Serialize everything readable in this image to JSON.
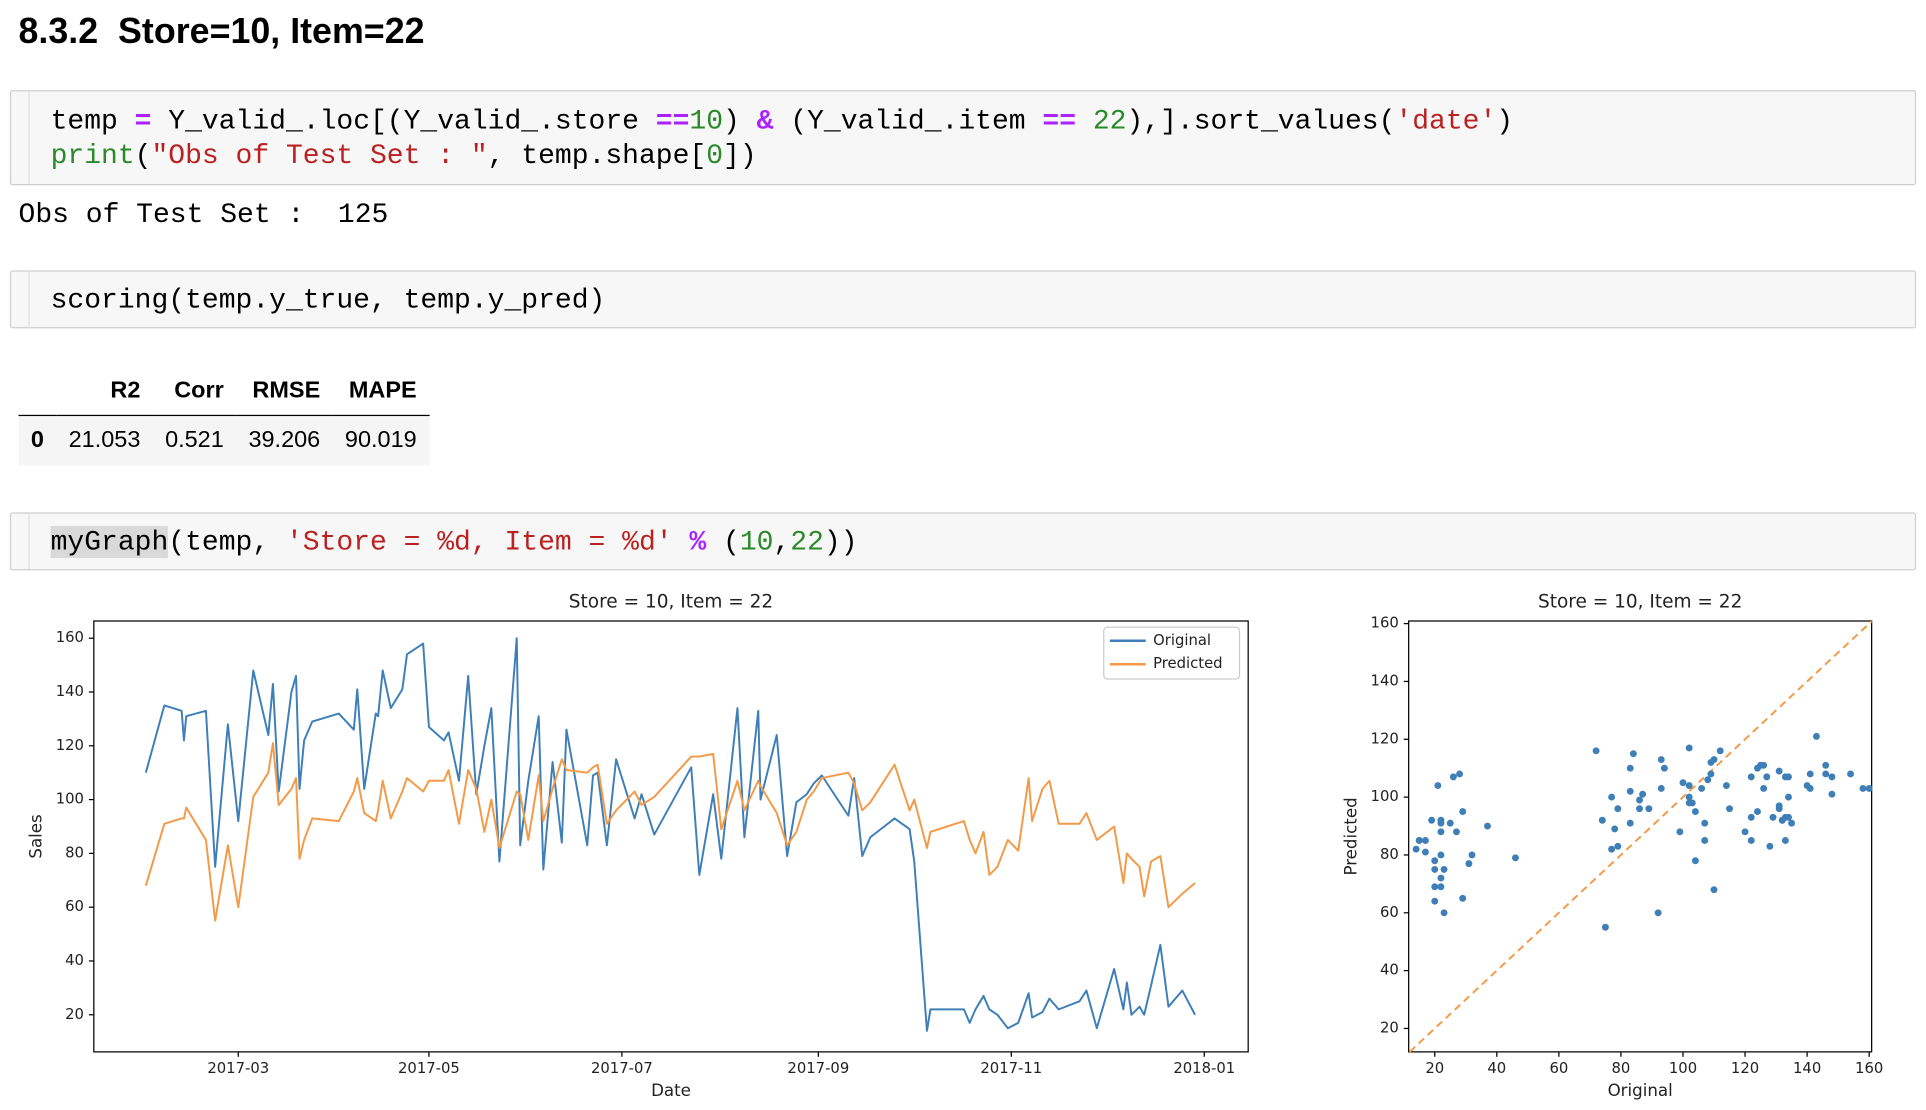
{
  "heading": "8.3.2  Store=10, Item=22",
  "cells": [
    {
      "code": [
        [
          "temp ",
          "=",
          " Y_valid_.loc[(Y_valid_.store ",
          "==",
          "10",
          ") ",
          "&",
          " (Y_valid_.item ",
          "==",
          " ",
          "22",
          "),].sort_values(",
          "'date'",
          ")"
        ],
        [
          "print",
          "(",
          "\"Obs of Test Set : \"",
          ", temp.shape[",
          "0",
          "])"
        ]
      ],
      "output": "Obs of Test Set :  125"
    },
    {
      "code": [
        [
          "scoring(temp.y_true, temp.y_pred)"
        ]
      ]
    },
    {
      "code": [
        [
          "myGraph",
          "(temp, ",
          "'Store = %d, Item = %d'",
          " ",
          "%",
          " (",
          "10",
          ",",
          "22",
          "))"
        ]
      ]
    }
  ],
  "table": {
    "columns": [
      "R2",
      "Corr",
      "RMSE",
      "MAPE"
    ],
    "rows": [
      {
        "index": "0",
        "values": [
          "21.053",
          "0.521",
          "39.206",
          "90.019"
        ]
      }
    ]
  },
  "chart_data": [
    {
      "type": "line",
      "title": "Store = 10, Item = 22",
      "xlabel": "Date",
      "ylabel": "Sales",
      "x": [
        2017.084,
        2017.1,
        2017.115,
        2017.117,
        2017.119,
        2017.136,
        2017.144,
        2017.155,
        2017.164,
        2017.177,
        2017.19,
        2017.194,
        2017.199,
        2017.21,
        2017.214,
        2017.217,
        2017.221,
        2017.228,
        2017.251,
        2017.264,
        2017.267,
        2017.273,
        2017.283,
        2017.285,
        2017.289,
        2017.296,
        2017.306,
        2017.31,
        2017.324,
        2017.329,
        2017.342,
        2017.346,
        2017.355,
        2017.363,
        2017.37,
        2017.377,
        2017.383,
        2017.39,
        2017.405,
        2017.408,
        2017.415,
        2017.424,
        2017.428,
        2017.436,
        2017.444,
        2017.448,
        2017.466,
        2017.471,
        2017.475,
        2017.483,
        2017.491,
        2017.507,
        2017.513,
        2017.524,
        2017.556,
        2017.563,
        2017.575,
        2017.582,
        2017.596,
        2017.602,
        2017.614,
        2017.616,
        2017.63,
        2017.639,
        2017.647,
        2017.656,
        2017.662,
        2017.669,
        2017.692,
        2017.697,
        2017.704,
        2017.711,
        2017.732,
        2017.745,
        2017.749,
        2017.76,
        2017.763,
        2017.792,
        2017.797,
        2017.802,
        2017.809,
        2017.814,
        2017.821,
        2017.83,
        2017.839,
        2017.848,
        2017.851,
        2017.86,
        2017.866,
        2017.874,
        2017.892,
        2017.898,
        2017.907,
        2017.922,
        2017.93,
        2017.933,
        2017.937,
        2017.944,
        2017.948,
        2017.954,
        2017.962,
        2017.969,
        2017.981,
        2017.992
      ],
      "series": [
        {
          "name": "Original",
          "color": "#3f7fb8",
          "values": [
            110,
            135,
            133,
            122,
            131,
            133,
            75,
            128,
            92,
            148,
            124,
            143,
            103,
            140,
            146,
            104,
            122,
            129,
            132,
            126,
            141,
            104,
            132,
            131,
            148,
            134,
            141,
            154,
            158,
            127,
            122,
            125,
            107,
            146,
            102,
            120,
            134,
            77,
            160,
            83,
            107,
            131,
            74,
            114,
            84,
            126,
            83,
            109,
            110,
            83,
            115,
            93,
            102,
            87,
            112,
            72,
            102,
            78,
            134,
            86,
            133,
            100,
            124,
            79,
            99,
            102,
            106,
            109,
            94,
            108,
            79,
            86,
            93,
            89,
            77,
            14,
            22,
            22,
            17,
            22,
            27,
            22,
            20,
            15,
            17,
            28,
            19,
            21,
            26,
            22,
            25,
            29,
            15,
            37,
            22,
            32,
            20,
            23,
            20,
            31,
            46,
            23,
            29,
            20
          ]
        },
        {
          "name": "Predicted",
          "color": "#f39a48",
          "values": [
            68,
            91,
            93,
            93,
            97,
            85,
            55,
            83,
            60,
            101,
            110,
            121,
            98,
            104,
            108,
            78,
            85,
            93,
            92,
            103,
            108,
            95,
            92,
            96,
            107,
            93,
            103,
            108,
            103,
            107,
            107,
            111,
            91,
            111,
            104,
            88,
            100,
            82,
            103,
            102,
            85,
            109,
            92,
            104,
            115,
            111,
            110,
            112,
            113,
            91,
            96,
            103,
            98,
            101,
            116,
            116,
            117,
            89,
            107,
            96,
            107,
            105,
            95,
            83,
            88,
            100,
            103,
            108,
            110,
            106,
            96,
            99,
            113,
            96,
            100,
            82,
            88,
            92,
            85,
            80,
            88,
            72,
            75,
            85,
            81,
            108,
            92,
            104,
            107,
            91,
            91,
            95,
            85,
            90,
            69,
            80,
            78,
            75,
            64,
            77,
            79,
            60,
            65,
            69
          ]
        }
      ],
      "xlim": [
        2017.039,
        2018.038
      ],
      "xticks": [
        {
          "value": 2017.164,
          "label": "2017-03"
        },
        {
          "value": 2017.329,
          "label": "2017-05"
        },
        {
          "value": 2017.496,
          "label": "2017-07"
        },
        {
          "value": 2017.666,
          "label": "2017-09"
        },
        {
          "value": 2017.833,
          "label": "2017-11"
        },
        {
          "value": 2018.0,
          "label": "2018-01"
        }
      ],
      "ylim": [
        6.2,
        166.4
      ],
      "yticks": [
        20,
        40,
        60,
        80,
        100,
        120,
        140,
        160
      ],
      "legend": "upper right"
    },
    {
      "type": "scatter",
      "title": "Store = 10, Item = 22",
      "xlabel": "Original",
      "ylabel": "Predicted",
      "color": "#3f7fb8",
      "x": [
        110,
        135,
        133,
        122,
        131,
        133,
        75,
        128,
        92,
        148,
        124,
        143,
        103,
        140,
        146,
        104,
        122,
        129,
        132,
        126,
        141,
        104,
        132,
        131,
        148,
        134,
        141,
        154,
        158,
        127,
        122,
        125,
        107,
        146,
        102,
        120,
        134,
        77,
        160,
        83,
        107,
        131,
        74,
        114,
        84,
        126,
        83,
        109,
        110,
        83,
        115,
        93,
        102,
        87,
        112,
        72,
        102,
        78,
        134,
        86,
        133,
        100,
        124,
        79,
        99,
        102,
        106,
        109,
        94,
        108,
        79,
        86,
        93,
        89,
        77,
        14,
        22,
        22,
        17,
        22,
        27,
        22,
        20,
        15,
        17,
        28,
        19,
        21,
        26,
        22,
        25,
        29,
        15,
        37,
        22,
        32,
        20,
        23,
        20,
        31,
        46,
        23,
        29,
        20
      ],
      "y": [
        68,
        91,
        93,
        93,
        97,
        85,
        55,
        83,
        60,
        101,
        110,
        121,
        98,
        104,
        108,
        78,
        85,
        93,
        92,
        103,
        108,
        95,
        92,
        96,
        107,
        93,
        103,
        108,
        103,
        107,
        107,
        111,
        91,
        111,
        104,
        88,
        100,
        82,
        103,
        102,
        85,
        109,
        92,
        104,
        115,
        111,
        110,
        112,
        113,
        91,
        96,
        103,
        98,
        101,
        116,
        116,
        117,
        89,
        107,
        96,
        107,
        105,
        95,
        83,
        88,
        100,
        103,
        108,
        110,
        106,
        96,
        99,
        113,
        96,
        100,
        82,
        88,
        92,
        85,
        80,
        88,
        72,
        75,
        85,
        81,
        108,
        92,
        104,
        107,
        91,
        91,
        95,
        85,
        90,
        69,
        80,
        78,
        75,
        64,
        77,
        79,
        60,
        65,
        69
      ],
      "xlim": [
        11.6,
        160.8
      ],
      "xticks": [
        20,
        40,
        60,
        80,
        100,
        120,
        140,
        160
      ],
      "ylim": [
        11.9,
        160.9
      ],
      "yticks": [
        20,
        40,
        60,
        80,
        100,
        120,
        140,
        160
      ],
      "identity_line": true,
      "identity_color": "#f39a48"
    }
  ]
}
